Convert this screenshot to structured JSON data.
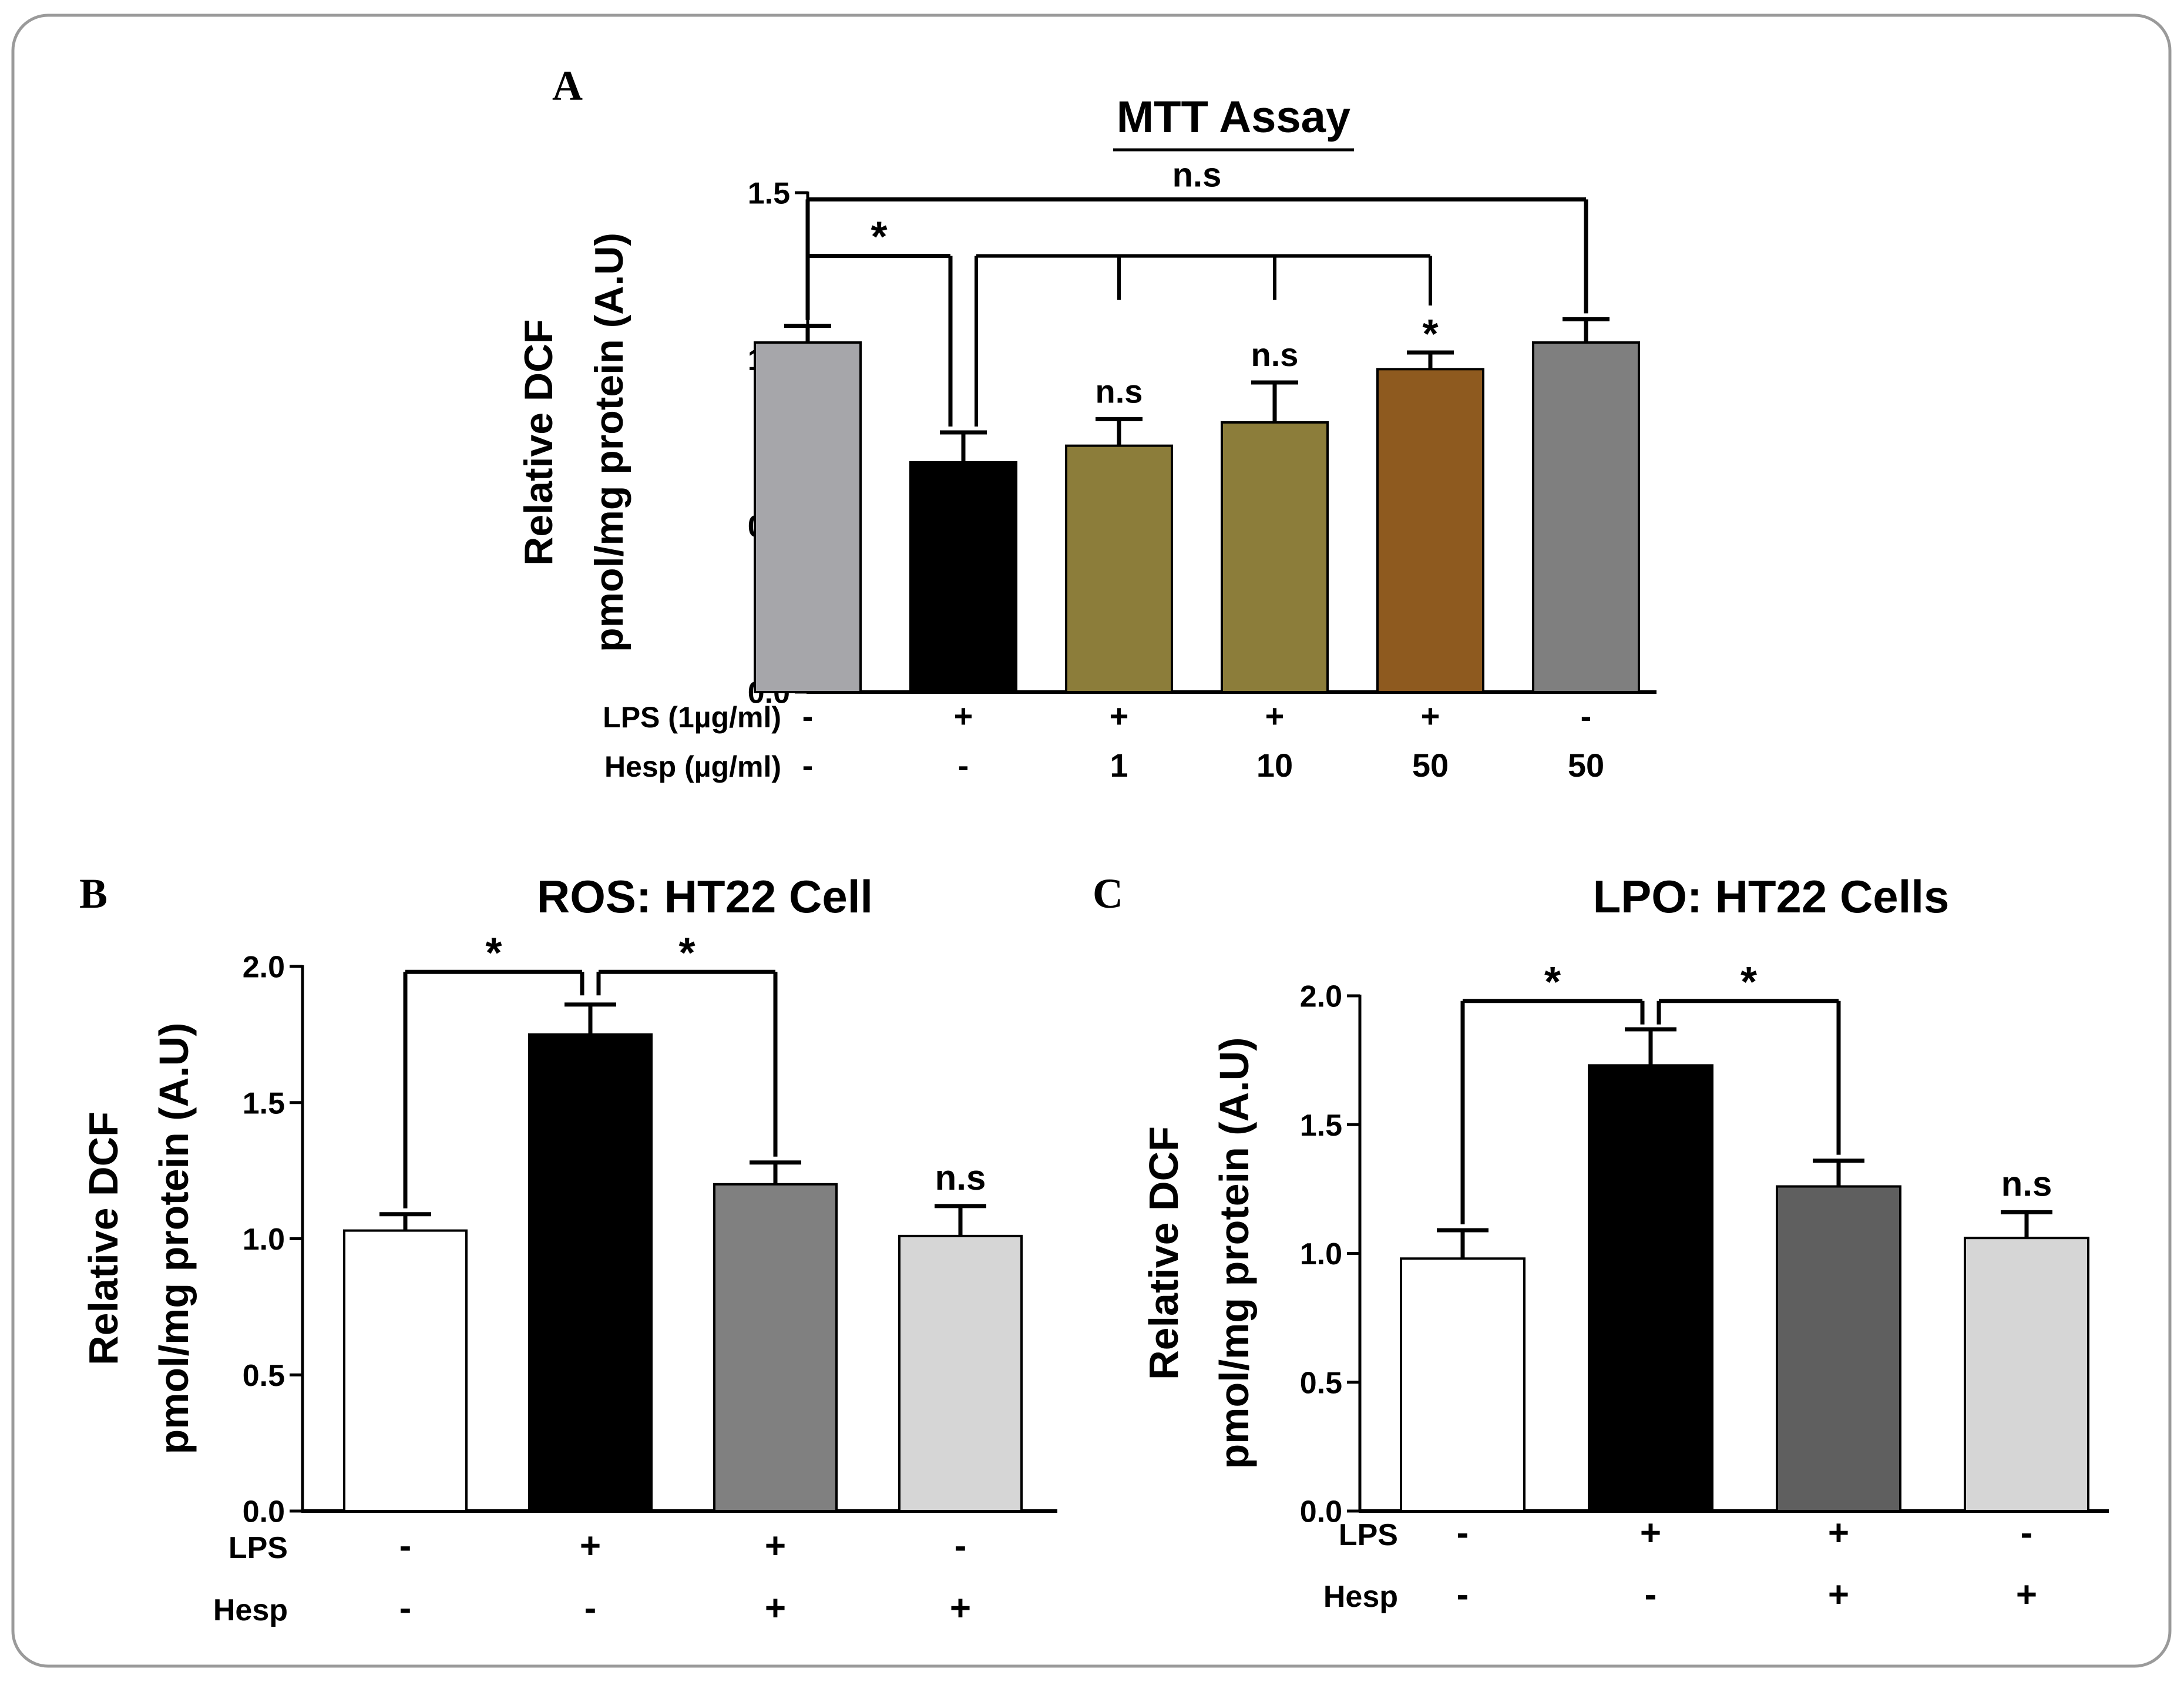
{
  "panels": [
    "A",
    "B",
    "C"
  ],
  "chart_data": [
    {
      "type": "bar",
      "panel": "A",
      "title": "MTT Assay",
      "ylabel": [
        "Relative DCF",
        "pmol/mg protein (A.U)"
      ],
      "ylim": [
        0,
        1.5
      ],
      "yticks": [
        "0.0",
        "0.5",
        "1.0",
        "1.5"
      ],
      "conditions": [
        {
          "label": "LPS (1µg/ml)",
          "values": [
            "-",
            "+",
            "+",
            "+",
            "+",
            "-"
          ]
        },
        {
          "label": "Hesp (µg/ml)",
          "values": [
            "-",
            "-",
            "1",
            "10",
            "50",
            "50"
          ]
        }
      ],
      "values": [
        1.05,
        0.69,
        0.74,
        0.81,
        0.97,
        1.05
      ],
      "errors": [
        0.05,
        0.09,
        0.08,
        0.12,
        0.05,
        0.07
      ],
      "colors": [
        "#a6a6aa",
        "#000000",
        "#8c7d3a",
        "#8c7d3a",
        "#8e5a1f",
        "#7f7f7f"
      ],
      "bar_labels": [
        "",
        "",
        "n.s",
        "n.s",
        "*",
        ""
      ],
      "comparisons": [
        {
          "label": "*",
          "from": 0,
          "to": 1,
          "y": 1.31
        },
        {
          "label": "n.s",
          "from": 0,
          "to": 5,
          "y": 1.48
        },
        {
          "label": "",
          "from": 1,
          "to": [
            2,
            3,
            4
          ],
          "y": 1.31
        }
      ]
    },
    {
      "type": "bar",
      "panel": "B",
      "title": "ROS: HT22 Cell",
      "ylabel": [
        "Relative DCF",
        "pmol/mg protein (A.U)"
      ],
      "ylim": [
        0,
        2.0
      ],
      "yticks": [
        "0.0",
        "0.5",
        "1.0",
        "1.5",
        "2.0"
      ],
      "conditions": [
        {
          "label": "LPS",
          "values": [
            "-",
            "+",
            "+",
            "-"
          ]
        },
        {
          "label": "Hesp",
          "values": [
            "-",
            "-",
            "+",
            "+"
          ]
        }
      ],
      "values": [
        1.03,
        1.75,
        1.2,
        1.01
      ],
      "errors": [
        0.06,
        0.11,
        0.08,
        0.11
      ],
      "colors": [
        "#ffffff",
        "#000000",
        "#808080",
        "#d6d6d6"
      ],
      "bar_labels": [
        "",
        "",
        "",
        "n.s"
      ],
      "comparisons": [
        {
          "label": "*",
          "from": 0,
          "to": 1,
          "y": 1.98
        },
        {
          "label": "*",
          "from": 1,
          "to": 2,
          "y": 1.98
        }
      ]
    },
    {
      "type": "bar",
      "panel": "C",
      "title": "LPO: HT22 Cells",
      "ylabel": [
        "Relative DCF",
        "pmol/mg protein (A.U)"
      ],
      "ylim": [
        0,
        2.0
      ],
      "yticks": [
        "0.0",
        "0.5",
        "1.0",
        "1.5",
        "2.0"
      ],
      "conditions": [
        {
          "label": "LPS",
          "values": [
            "-",
            "+",
            "+",
            "-"
          ]
        },
        {
          "label": "Hesp",
          "values": [
            "-",
            "-",
            "+",
            "+"
          ]
        }
      ],
      "values": [
        0.98,
        1.73,
        1.26,
        1.06
      ],
      "errors": [
        0.11,
        0.14,
        0.1,
        0.1
      ],
      "colors": [
        "#ffffff",
        "#000000",
        "#5f5f5f",
        "#d6d6d6"
      ],
      "bar_labels": [
        "",
        "",
        "",
        "n.s"
      ],
      "comparisons": [
        {
          "label": "*",
          "from": 0,
          "to": 1,
          "y": 1.98
        },
        {
          "label": "*",
          "from": 1,
          "to": 2,
          "y": 1.98
        }
      ]
    }
  ]
}
